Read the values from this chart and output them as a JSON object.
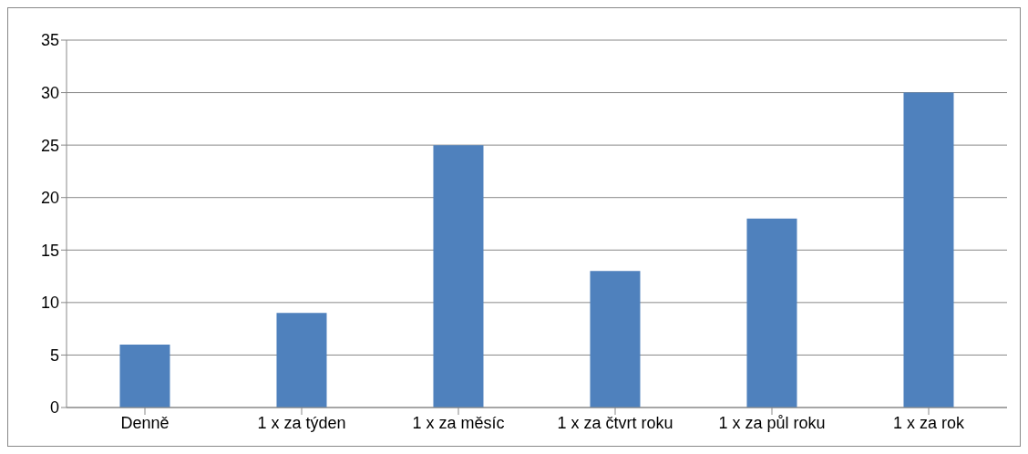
{
  "chart_data": {
    "type": "bar",
    "categories": [
      "Denně",
      "1 x za týden",
      "1 x za měsíc",
      "1 x za čtvrt roku",
      "1 x za půl roku",
      "1 x za rok"
    ],
    "values": [
      6,
      9,
      25,
      13,
      18,
      30
    ],
    "color": "#4f81bd",
    "ylim": [
      0,
      35
    ],
    "yticks": [
      0,
      5,
      10,
      15,
      20,
      25,
      30,
      35
    ],
    "grid": "y",
    "legend": false
  }
}
